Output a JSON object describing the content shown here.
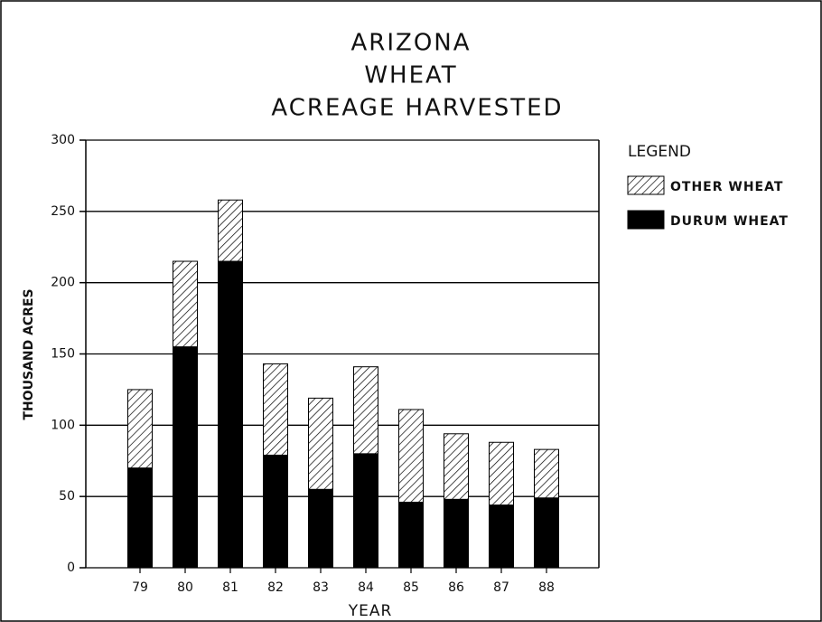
{
  "chart_data": {
    "type": "stacked-bar",
    "title": [
      "ARIZONA",
      "WHEAT",
      "ACREAGE HARVESTED"
    ],
    "xlabel": "YEAR",
    "ylabel": "THOUSAND ACRES",
    "legend_title": "LEGEND",
    "legend": "right",
    "categories": [
      "79",
      "80",
      "81",
      "82",
      "83",
      "84",
      "85",
      "86",
      "87",
      "88"
    ],
    "series": [
      {
        "name": "DURUM WHEAT",
        "color": "#000000",
        "hatch": false,
        "values": [
          70,
          155,
          215,
          79,
          55,
          80,
          46,
          48,
          44,
          49
        ]
      },
      {
        "name": "OTHER WHEAT",
        "color": "#000000",
        "hatch": true,
        "values": [
          55,
          60,
          43,
          64,
          64,
          61,
          65,
          46,
          44,
          34
        ]
      }
    ],
    "ylim": [
      0,
      300
    ],
    "yticks": [
      0,
      50,
      100,
      150,
      200,
      250,
      300
    ],
    "grid": true
  }
}
